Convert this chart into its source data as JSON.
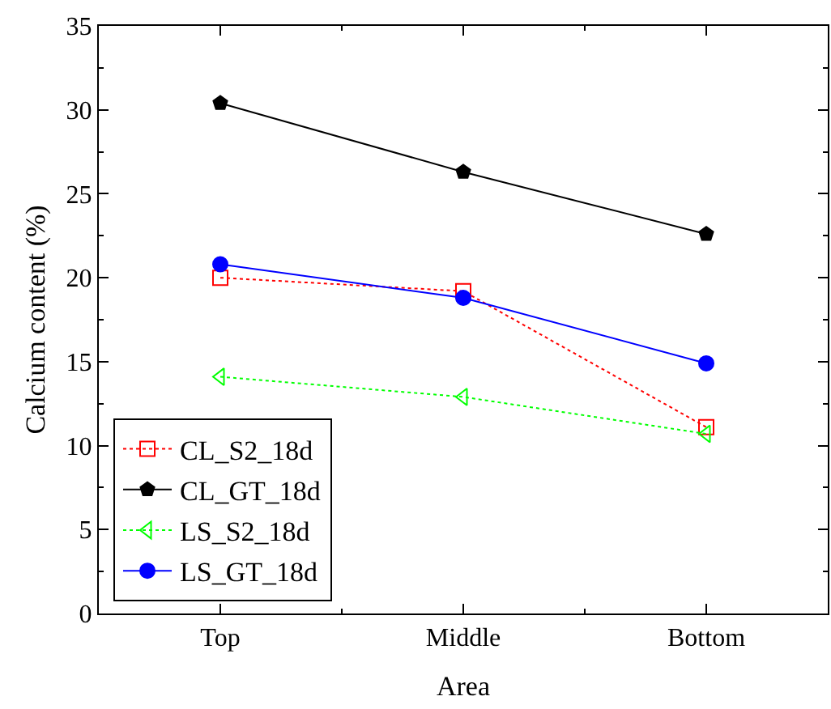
{
  "chart_data": {
    "type": "line",
    "xlabel": "Area",
    "ylabel": "Calcium content (%)",
    "categories": [
      "Top",
      "Middle",
      "Bottom"
    ],
    "ylim": [
      0,
      35
    ],
    "yticks": [
      0,
      5,
      10,
      15,
      20,
      25,
      30,
      35
    ],
    "legend": "bottom left",
    "series": [
      {
        "name": "CL_S2_18d",
        "color": "#ff0000",
        "values": [
          20.0,
          19.2,
          11.1
        ],
        "marker": "square",
        "line_style": "dotted"
      },
      {
        "name": "CL_GT_18d",
        "color": "#000000",
        "values": [
          30.4,
          26.3,
          22.6
        ],
        "marker": "star",
        "line_style": "solid"
      },
      {
        "name": "LS_S2_18d",
        "color": "#00ff00",
        "values": [
          14.1,
          12.9,
          10.7
        ],
        "marker": "triangle",
        "line_style": "dotted"
      },
      {
        "name": "LS_GT_18d",
        "color": "#0000ff",
        "values": [
          20.8,
          18.8,
          14.9
        ],
        "marker": "circle",
        "line_style": "solid"
      }
    ]
  }
}
